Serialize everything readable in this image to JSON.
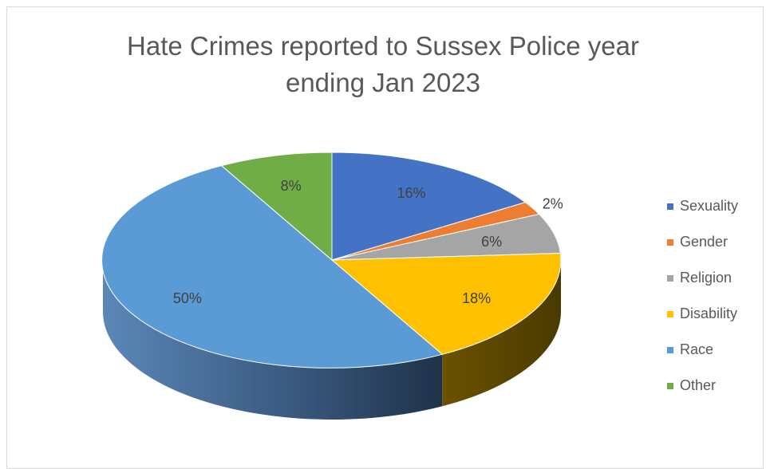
{
  "chart_data": {
    "type": "pie",
    "title_lines": [
      "Hate Crimes reported to Sussex Police year",
      "ending Jan 2023"
    ],
    "style": "3d",
    "legend_position": "right",
    "categories": [
      "Sexuality",
      "Gender",
      "Religion",
      "Disability",
      "Race",
      "Other"
    ],
    "values": [
      16,
      2,
      6,
      18,
      50,
      8
    ],
    "data_labels": [
      "16%",
      "2%",
      "6%",
      "18%",
      "50%",
      "8%"
    ],
    "colors": [
      "#4472C4",
      "#ED7D31",
      "#A5A5A5",
      "#FFC000",
      "#5B9BD5",
      "#70AD47"
    ]
  }
}
